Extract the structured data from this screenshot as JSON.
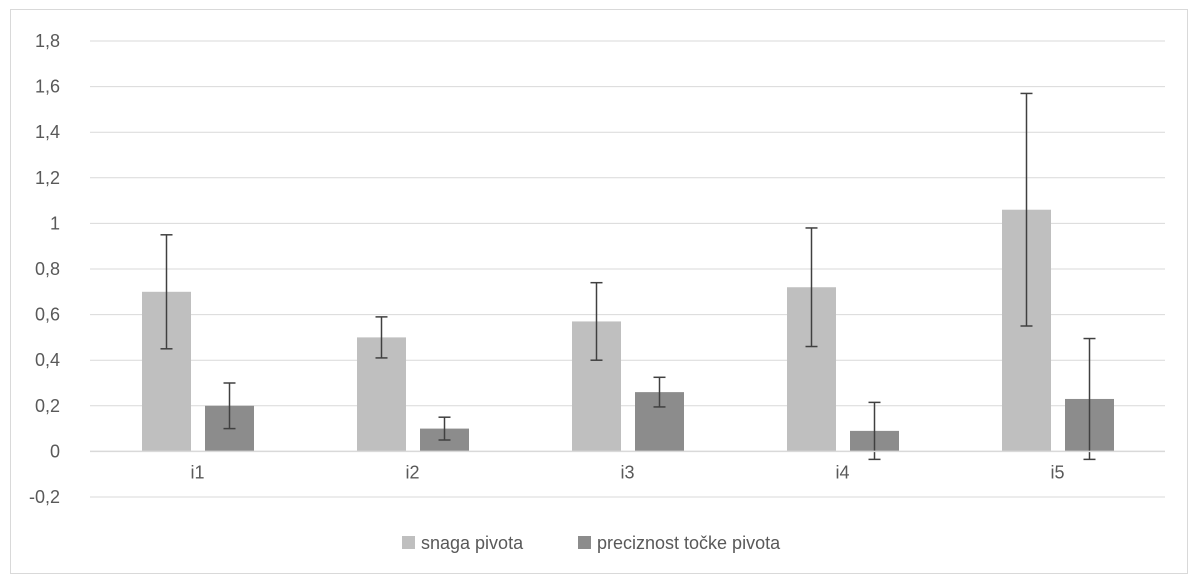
{
  "chart_data": {
    "type": "bar",
    "categories": [
      "i1",
      "i2",
      "i3",
      "i4",
      "i5"
    ],
    "series": [
      {
        "name": "snaga pivota",
        "color": "#bfbfbf",
        "values": [
          0.7,
          0.5,
          0.57,
          0.72,
          1.06
        ],
        "errors": [
          0.25,
          0.09,
          0.17,
          0.26,
          0.51
        ]
      },
      {
        "name": "preciznost točke pivota",
        "color": "#8c8c8c",
        "values": [
          0.2,
          0.1,
          0.26,
          0.09,
          0.23
        ],
        "errors": [
          0.1,
          0.05,
          0.065,
          0.125,
          0.265
        ]
      }
    ],
    "ylim": [
      -0.2,
      1.8
    ],
    "yticks": [
      -0.2,
      0,
      0.2,
      0.4,
      0.6,
      0.8,
      1,
      1.2,
      1.4,
      1.6,
      1.8
    ],
    "ytick_labels": [
      "-0,2",
      "0",
      "0,2",
      "0,4",
      "0,6",
      "0,8",
      "1",
      "1,2",
      "1,4",
      "1,6",
      "1,8"
    ],
    "title": "",
    "xlabel": "",
    "ylabel": "",
    "grid": true,
    "legend_position": "bottom",
    "error_bars": true
  }
}
